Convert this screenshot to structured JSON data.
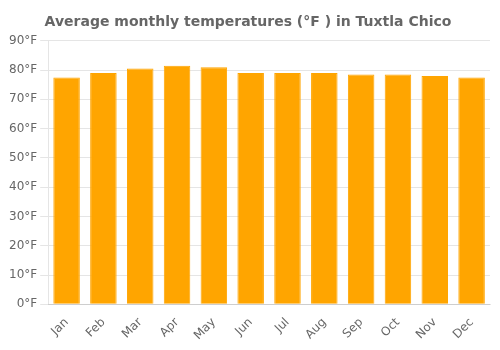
{
  "chart_data": {
    "type": "bar",
    "title": "Average monthly temperatures (°F ) in Tuxtla Chico",
    "categories": [
      "Jan",
      "Feb",
      "Mar",
      "Apr",
      "May",
      "Jun",
      "Jul",
      "Aug",
      "Sep",
      "Oct",
      "Nov",
      "Dec"
    ],
    "values": [
      77.5,
      79.0,
      80.5,
      81.5,
      81.0,
      79.0,
      79.0,
      79.0,
      78.5,
      78.5,
      78.0,
      77.5
    ],
    "color": "#FFA500",
    "ylim": [
      0,
      90
    ],
    "yticks": [
      {
        "value": 0,
        "label": "0°F"
      },
      {
        "value": 10,
        "label": "10°F"
      },
      {
        "value": 20,
        "label": "20°F"
      },
      {
        "value": 30,
        "label": "30°F"
      },
      {
        "value": 40,
        "label": "40°F"
      },
      {
        "value": 50,
        "label": "50°F"
      },
      {
        "value": 60,
        "label": "60°F"
      },
      {
        "value": 70,
        "label": "70°F"
      },
      {
        "value": 80,
        "label": "80°F"
      },
      {
        "value": 90,
        "label": "90°F"
      }
    ],
    "grid": true
  }
}
